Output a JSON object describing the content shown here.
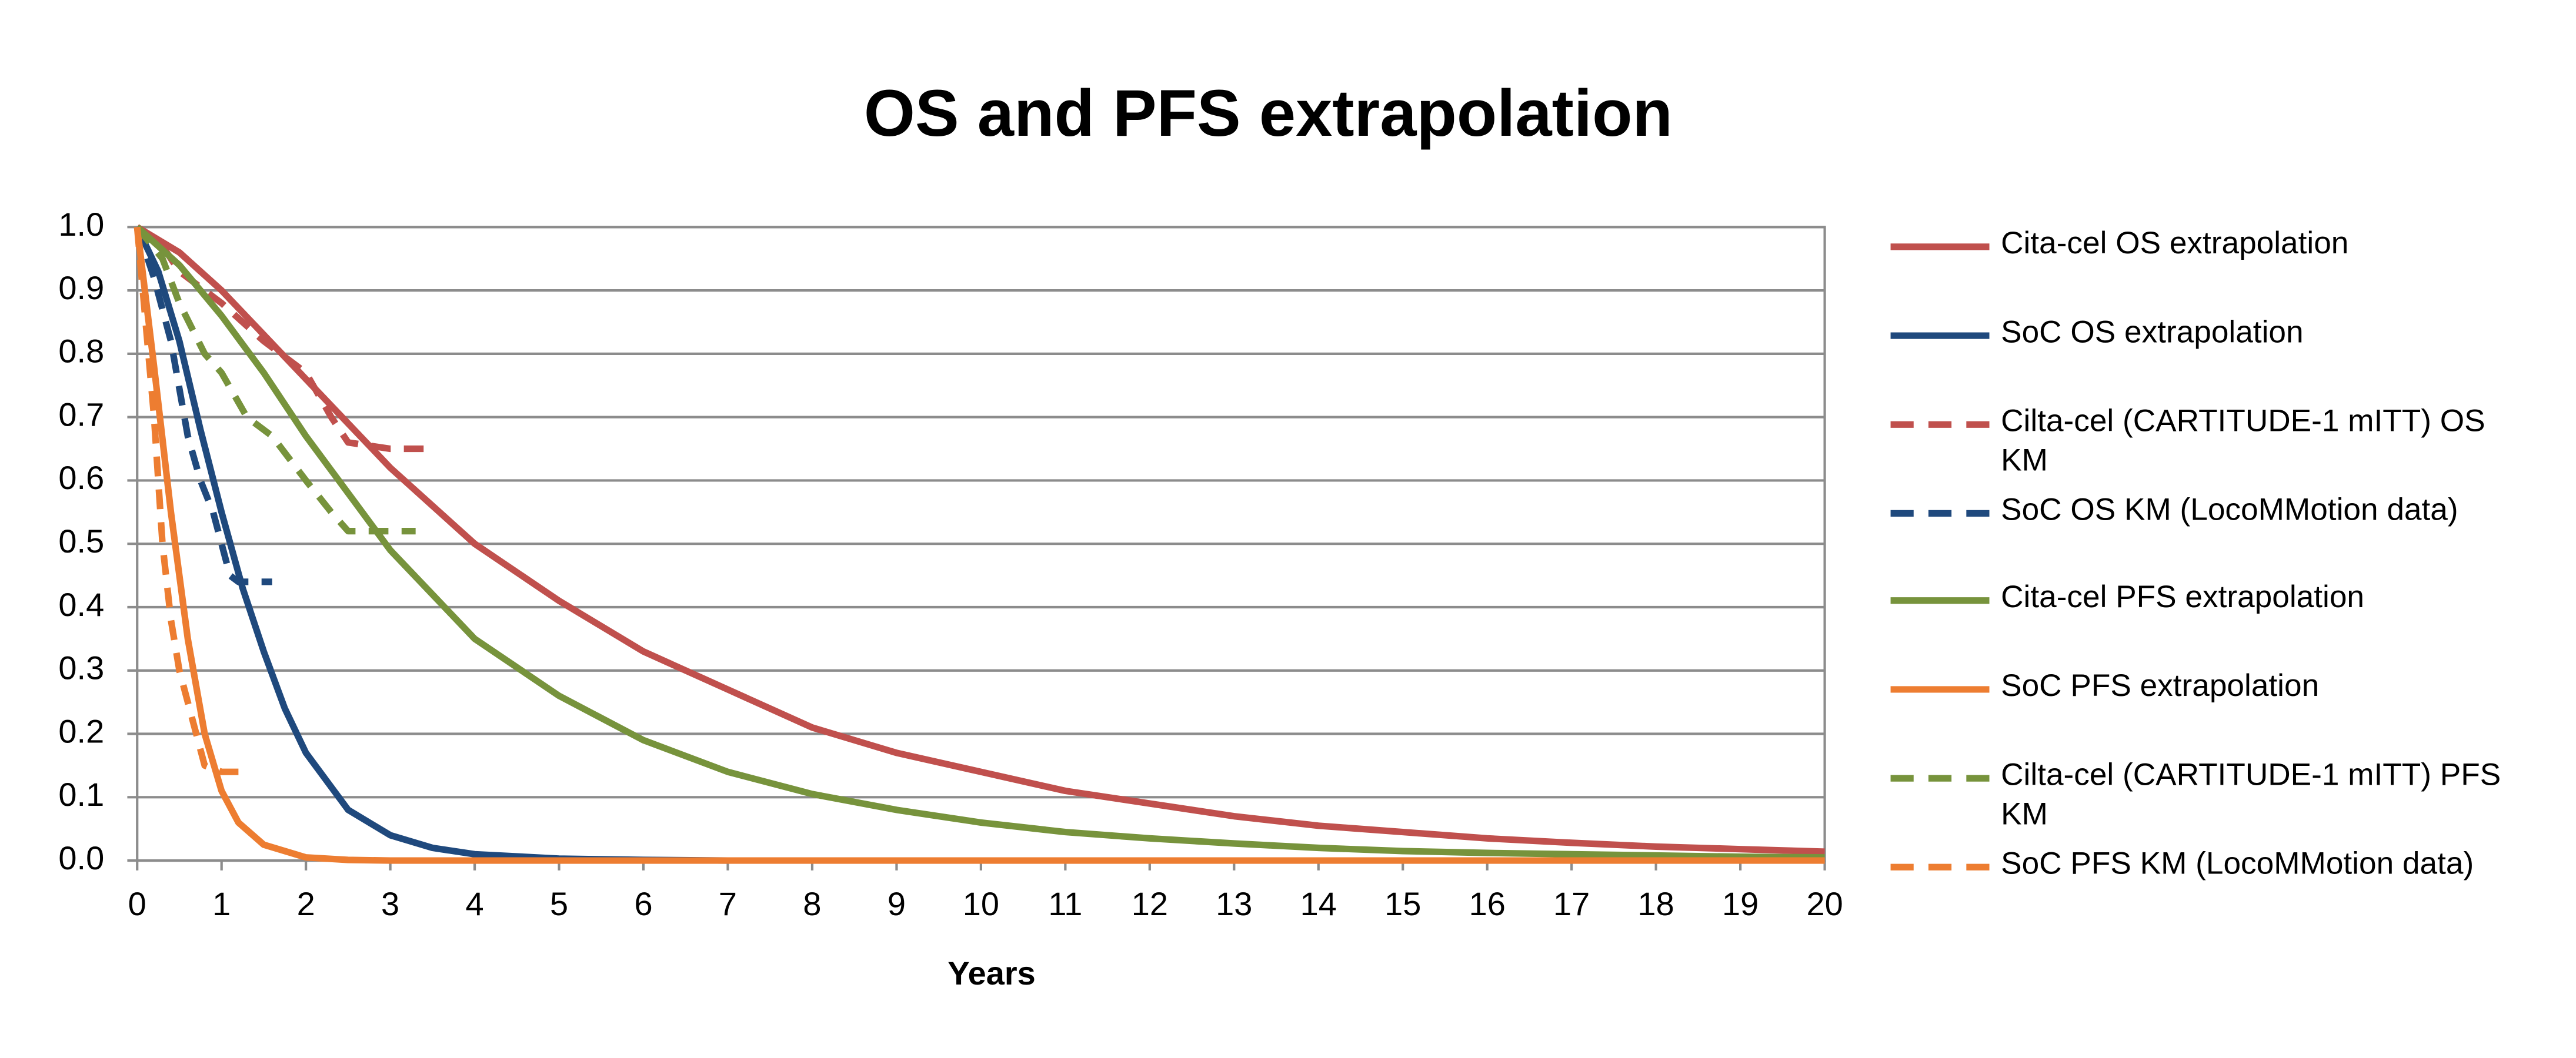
{
  "chart_data": {
    "type": "line",
    "title": "OS and PFS extrapolation",
    "x_label": "Years",
    "xlim": [
      0,
      20
    ],
    "xticks": [
      0,
      1,
      2,
      3,
      4,
      5,
      6,
      7,
      8,
      9,
      10,
      11,
      12,
      13,
      14,
      15,
      16,
      17,
      18,
      19,
      20
    ],
    "ylim": [
      0,
      1
    ],
    "yticks": [
      {
        "value": 0,
        "label": "0.0"
      },
      0.1,
      0.2,
      0.3,
      0.4,
      0.5,
      0.6,
      0.7,
      0.8,
      0.9,
      {
        "value": 1,
        "label": "1.0"
      }
    ],
    "grid": true,
    "legend": "right",
    "series": [
      {
        "name": "Cita-cel OS extrapolation",
        "color": "#c0504d",
        "dash": false,
        "x": [
          0,
          0.5,
          1,
          1.5,
          2,
          3,
          4,
          5,
          6,
          7,
          8,
          9,
          10,
          11,
          12,
          13,
          14,
          15,
          16,
          17,
          18,
          19,
          20
        ],
        "values": [
          1,
          0.96,
          0.9,
          0.83,
          0.76,
          0.62,
          0.5,
          0.41,
          0.33,
          0.27,
          0.21,
          0.17,
          0.14,
          0.11,
          0.09,
          0.07,
          0.055,
          0.045,
          0.035,
          0.028,
          0.022,
          0.018,
          0.014
        ]
      },
      {
        "name": "SoC OS extrapolation",
        "color": "#1f497d",
        "dash": false,
        "x": [
          0,
          0.25,
          0.5,
          0.75,
          1,
          1.25,
          1.5,
          1.75,
          2,
          2.5,
          3,
          3.5,
          4,
          5,
          6,
          7
        ],
        "values": [
          1,
          0.93,
          0.82,
          0.68,
          0.55,
          0.43,
          0.33,
          0.24,
          0.17,
          0.08,
          0.04,
          0.02,
          0.01,
          0.003,
          0.001,
          0
        ]
      },
      {
        "name": "Cilta-cel (CARTITUDE-1 mITT) OS KM",
        "color": "#c0504d",
        "dash": true,
        "x": [
          0,
          0.3,
          0.5,
          1,
          1.5,
          2,
          2.3,
          2.5,
          3,
          3.4
        ],
        "values": [
          1,
          0.97,
          0.93,
          0.88,
          0.82,
          0.77,
          0.7,
          0.66,
          0.65,
          0.65
        ]
      },
      {
        "name": "SoC OS KM (LocoMMotion data)",
        "color": "#1f497d",
        "dash": true,
        "x": [
          0,
          0.2,
          0.4,
          0.6,
          0.75,
          0.9,
          1,
          1.1,
          1.2,
          1.6
        ],
        "values": [
          1,
          0.92,
          0.82,
          0.67,
          0.6,
          0.55,
          0.5,
          0.45,
          0.44,
          0.44
        ]
      },
      {
        "name": "Cita-cel PFS extrapolation",
        "color": "#77933c",
        "dash": false,
        "x": [
          0,
          0.5,
          1,
          1.5,
          2,
          2.5,
          3,
          4,
          5,
          6,
          7,
          8,
          9,
          10,
          11,
          12,
          13,
          14,
          15,
          16,
          17,
          18,
          19,
          20
        ],
        "values": [
          1,
          0.94,
          0.86,
          0.77,
          0.67,
          0.58,
          0.49,
          0.35,
          0.26,
          0.19,
          0.14,
          0.105,
          0.08,
          0.06,
          0.045,
          0.035,
          0.027,
          0.02,
          0.015,
          0.012,
          0.01,
          0.008,
          0.006,
          0.005
        ]
      },
      {
        "name": "SoC PFS extrapolation",
        "color": "#ed7d31",
        "dash": false,
        "x": [
          0,
          0.2,
          0.4,
          0.6,
          0.8,
          1,
          1.2,
          1.5,
          2,
          2.5,
          3,
          20
        ],
        "values": [
          1,
          0.78,
          0.55,
          0.35,
          0.2,
          0.11,
          0.06,
          0.025,
          0.005,
          0.001,
          0,
          0
        ]
      },
      {
        "name": "Cilta-cel (CARTITUDE-1 mITT) PFS KM",
        "color": "#77933c",
        "dash": true,
        "x": [
          0,
          0.3,
          0.5,
          0.8,
          1,
          1.3,
          1.6,
          2,
          2.3,
          2.5,
          3.3
        ],
        "values": [
          1,
          0.95,
          0.88,
          0.8,
          0.77,
          0.7,
          0.67,
          0.6,
          0.55,
          0.52,
          0.52
        ]
      },
      {
        "name": "SoC PFS KM (LocoMMotion data)",
        "color": "#ed7d31",
        "dash": true,
        "x": [
          0,
          0.1,
          0.2,
          0.3,
          0.4,
          0.5,
          0.7,
          0.8,
          1,
          1.2
        ],
        "values": [
          1,
          0.85,
          0.7,
          0.5,
          0.38,
          0.3,
          0.2,
          0.15,
          0.14,
          0.14
        ]
      }
    ]
  }
}
